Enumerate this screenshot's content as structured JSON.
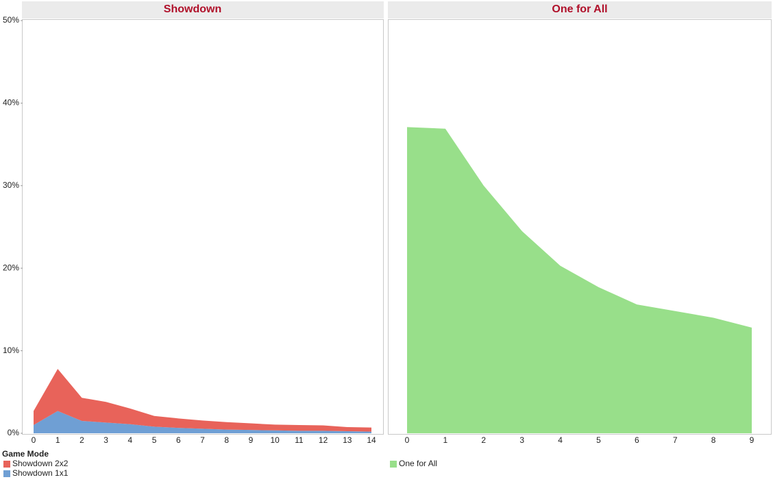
{
  "chart_data": [
    {
      "type": "stacked-area",
      "title": "Showdown",
      "categories": [
        "0",
        "1",
        "2",
        "3",
        "4",
        "5",
        "6",
        "7",
        "8",
        "9",
        "10",
        "11",
        "12",
        "13",
        "14"
      ],
      "series": [
        {
          "name": "Showdown 2x2",
          "color": "#e8635a",
          "values": [
            1.7,
            5.1,
            2.8,
            2.5,
            1.9,
            1.3,
            1.15,
            1.0,
            0.9,
            0.8,
            0.7,
            0.7,
            0.65,
            0.5,
            0.5
          ]
        },
        {
          "name": "Showdown 1x1",
          "color": "#6f9fd4",
          "values": [
            1.0,
            2.7,
            1.5,
            1.3,
            1.1,
            0.8,
            0.65,
            0.55,
            0.45,
            0.4,
            0.35,
            0.3,
            0.3,
            0.25,
            0.2
          ]
        }
      ],
      "legend_title": "Game Mode",
      "ylim": [
        0,
        50
      ],
      "yticks": [
        {
          "value": 0,
          "label": "0%"
        },
        {
          "value": 10,
          "label": "10%"
        },
        {
          "value": 20,
          "label": "20%"
        },
        {
          "value": 30,
          "label": "30%"
        },
        {
          "value": 40,
          "label": "40%"
        },
        {
          "value": 50,
          "label": "50%"
        }
      ]
    },
    {
      "type": "area",
      "title": "One for All",
      "categories": [
        "0",
        "1",
        "2",
        "3",
        "4",
        "5",
        "6",
        "7",
        "8",
        "9"
      ],
      "series": [
        {
          "name": "One for All",
          "color": "#98df8a",
          "values": [
            37.1,
            36.9,
            30.0,
            24.5,
            20.3,
            17.7,
            15.6,
            14.8,
            14.0,
            12.8
          ]
        }
      ],
      "ylim": [
        0,
        50
      ]
    }
  ]
}
